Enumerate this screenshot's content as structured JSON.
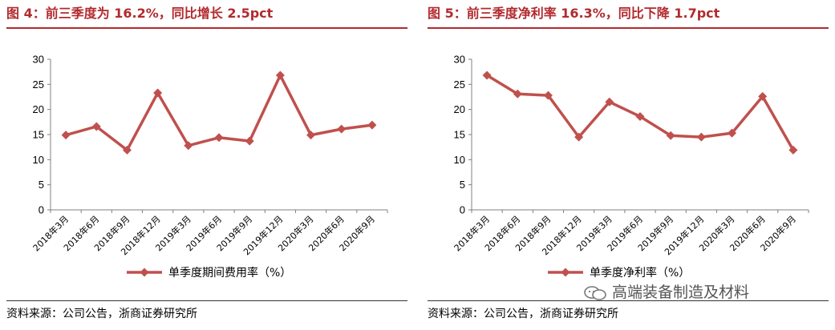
{
  "charts": [
    {
      "title": "图 4：前三季度为 16.2%，同比增长 2.5pct",
      "source": "资料来源：公司公告，浙商证券研究所",
      "chart_data": {
        "type": "line",
        "categories": [
          "2018年3月",
          "2018年6月",
          "2018年9月",
          "2018年12月",
          "2019年3月",
          "2019年6月",
          "2019年9月",
          "2019年12月",
          "2020年3月",
          "2020年6月",
          "2020年9月"
        ],
        "series": [
          {
            "name": "单季度期间费用率（%）",
            "values": [
              14.9,
              16.6,
              11.9,
              23.3,
              12.8,
              14.4,
              13.7,
              26.8,
              14.9,
              16.1,
              16.9
            ]
          }
        ],
        "yticks": [
          "0",
          "5",
          "10",
          "15",
          "20",
          "25",
          "30"
        ],
        "ylim": [
          0,
          30
        ],
        "grid": false,
        "legend": "bottom",
        "color": "#c0504d"
      }
    },
    {
      "title": "图 5：前三季度净利率 16.3%，同比下降 1.7pct",
      "source": "资料来源：公司公告，浙商证券研究所",
      "chart_data": {
        "type": "line",
        "categories": [
          "2018年3月",
          "2018年6月",
          "2018年9月",
          "2018年12月",
          "2019年3月",
          "2019年6月",
          "2019年9月",
          "2019年12月",
          "2020年3月",
          "2020年6月",
          "2020年9月"
        ],
        "series": [
          {
            "name": "单季度净利率（%）",
            "values": [
              26.8,
              23.1,
              22.8,
              14.5,
              21.5,
              18.6,
              14.8,
              14.5,
              15.3,
              22.6,
              11.9
            ]
          }
        ],
        "yticks": [
          "0",
          "5",
          "10",
          "15",
          "20",
          "25",
          "30"
        ],
        "ylim": [
          0,
          30
        ],
        "grid": false,
        "legend": "bottom",
        "color": "#c0504d"
      }
    }
  ],
  "watermark": {
    "text": "高端装备制造及材料",
    "icon": "wechat-icon"
  }
}
